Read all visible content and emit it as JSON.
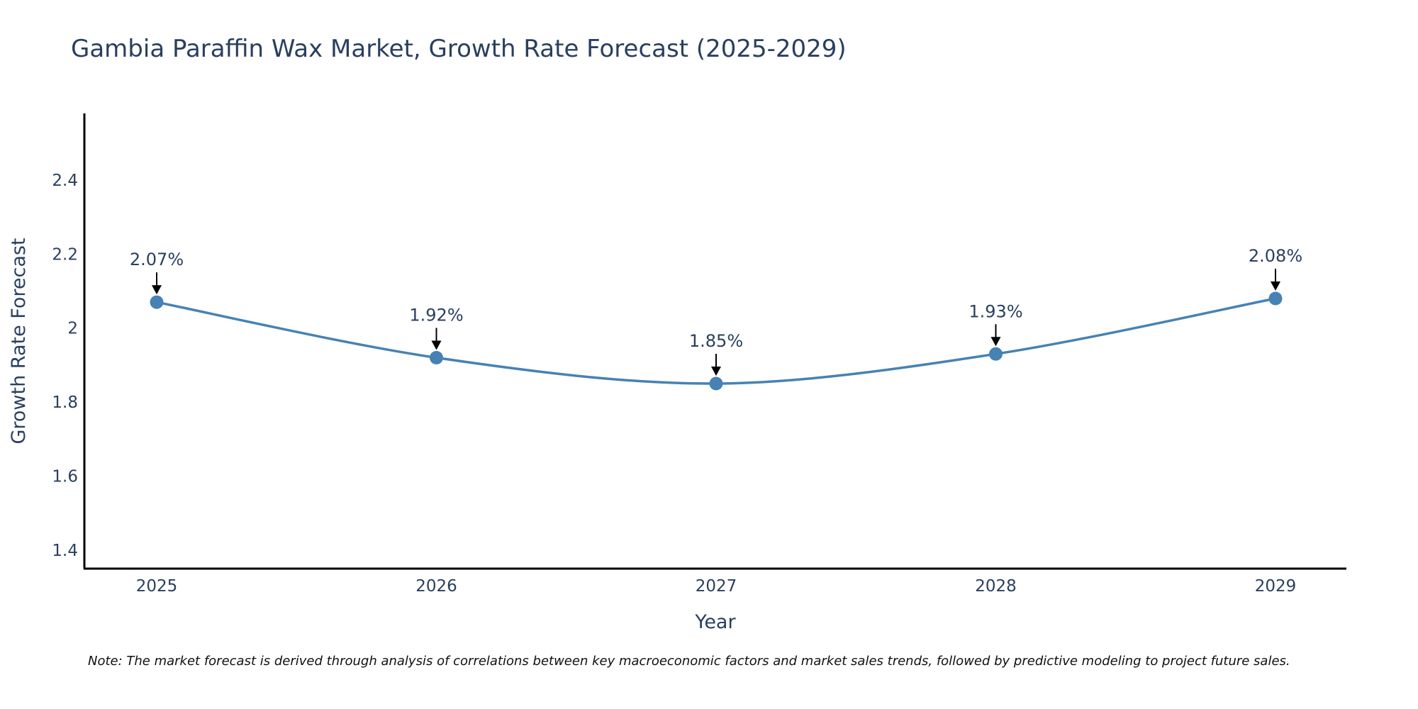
{
  "chart_data": {
    "type": "line",
    "title": "Gambia Paraffin Wax Market, Growth Rate Forecast (2025-2029)",
    "xlabel": "Year",
    "ylabel": "Growth Rate Forecast",
    "categories": [
      "2025",
      "2026",
      "2027",
      "2028",
      "2029"
    ],
    "values": [
      2.07,
      1.92,
      1.85,
      1.93,
      2.08
    ],
    "data_labels": [
      "2.07%",
      "1.92%",
      "1.85%",
      "1.93%",
      "2.08%"
    ],
    "ylim": [
      1.35,
      2.58
    ],
    "yticks": [
      1.4,
      1.6,
      1.8,
      2.0,
      2.2,
      2.4
    ],
    "ytick_labels": [
      "1.4",
      "1.6",
      "1.8",
      "2",
      "2.2",
      "2.4"
    ],
    "grid": false,
    "line_shape": "spline",
    "line_color": "#4682b4",
    "marker_color": "#4682b4",
    "arrow_color": "#000000",
    "text_color": "#2a3f5f",
    "note": "Note: The market forecast is derived through analysis of correlations between key macroeconomic factors and market sales trends, followed by predictive modeling to project future sales."
  }
}
